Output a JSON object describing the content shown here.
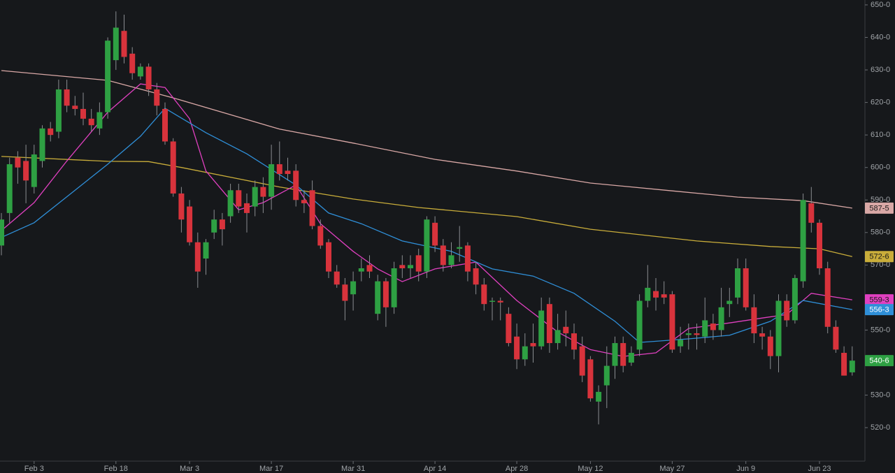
{
  "chart_data": {
    "type": "candlestick",
    "up_color": "#2ea043",
    "down_color": "#d8333c",
    "ylim": [
      509.7,
      651.5
    ],
    "yticks": [
      {
        "value": 520,
        "label": "520-0"
      },
      {
        "value": 530,
        "label": "530-0"
      },
      {
        "value": 540,
        "label": "540-0"
      },
      {
        "value": 550,
        "label": "550-0"
      },
      {
        "value": 560,
        "label": "560-0"
      },
      {
        "value": 570,
        "label": "570-0"
      },
      {
        "value": 580,
        "label": "580-0"
      },
      {
        "value": 590,
        "label": "590-0"
      },
      {
        "value": 600,
        "label": "600-0"
      },
      {
        "value": 610,
        "label": "610-0"
      },
      {
        "value": 620,
        "label": "620-0"
      },
      {
        "value": 630,
        "label": "630-0"
      },
      {
        "value": 640,
        "label": "640-0"
      },
      {
        "value": 650,
        "label": "650-0"
      }
    ],
    "categories": [
      null,
      null,
      null,
      null,
      "Feb 3",
      null,
      null,
      null,
      null,
      null,
      null,
      null,
      null,
      null,
      "Feb 18",
      null,
      null,
      null,
      null,
      null,
      null,
      null,
      null,
      "Mar 3",
      null,
      null,
      null,
      null,
      null,
      null,
      null,
      null,
      null,
      "Mar 17",
      null,
      null,
      null,
      null,
      null,
      null,
      null,
      null,
      null,
      "Mar 31",
      null,
      null,
      null,
      null,
      null,
      null,
      null,
      null,
      null,
      "Apr 14",
      null,
      null,
      null,
      null,
      null,
      null,
      null,
      null,
      null,
      "Apr 28",
      null,
      null,
      null,
      null,
      null,
      null,
      null,
      null,
      "May 12",
      null,
      null,
      null,
      null,
      null,
      null,
      null,
      null,
      null,
      "May 27",
      null,
      null,
      null,
      null,
      null,
      null,
      null,
      null,
      "Jun 9",
      null,
      null,
      null,
      null,
      null,
      null,
      null,
      null,
      "Jun 23",
      null,
      null,
      null,
      null
    ],
    "open": [
      576,
      586,
      603,
      602,
      594,
      602,
      612,
      611,
      624,
      619,
      618,
      615,
      612,
      617,
      633,
      642,
      635,
      628,
      631,
      624,
      618,
      608,
      592,
      588,
      577,
      572,
      580,
      584,
      585,
      593,
      589,
      588,
      594,
      591,
      601,
      599,
      599,
      590,
      593,
      582,
      577,
      568,
      564,
      561,
      568,
      570,
      555,
      565,
      557,
      570,
      569,
      573,
      568,
      583,
      576,
      570,
      575,
      576,
      569,
      564,
      559,
      559,
      555,
      548,
      541,
      546,
      545,
      558,
      546,
      551,
      549,
      545,
      541,
      528,
      533,
      539,
      546,
      540,
      544,
      559,
      562,
      561,
      561,
      545,
      548.5,
      549,
      548,
      552,
      550,
      558,
      560,
      569,
      557,
      549,
      548,
      542,
      559,
      553,
      565,
      589,
      583,
      569,
      551,
      543,
      537
    ],
    "high": [
      586,
      603,
      605,
      607,
      607,
      613,
      614,
      627,
      627,
      622,
      623,
      618,
      620,
      640,
      648,
      647,
      637,
      632,
      632,
      626,
      620,
      609,
      594,
      590,
      580,
      578,
      587,
      586,
      595,
      595,
      592,
      596,
      597,
      607,
      608,
      603,
      601,
      593,
      596,
      584,
      578,
      570,
      566,
      568,
      572,
      573,
      567,
      566,
      571,
      573,
      573,
      575,
      585,
      585,
      578,
      577,
      582,
      577,
      571,
      566,
      560,
      560,
      557,
      552,
      549,
      552,
      560,
      560,
      555,
      556,
      552,
      548,
      542,
      533,
      545,
      548,
      548,
      545,
      561,
      570,
      566,
      565,
      562,
      551,
      552,
      552,
      560,
      555,
      563,
      563,
      572,
      572,
      561,
      551,
      550,
      561,
      561,
      567,
      592,
      594,
      584,
      571,
      553,
      545,
      545
    ],
    "low": [
      573,
      583,
      595,
      589,
      592,
      600,
      608,
      609,
      617,
      616,
      613,
      611,
      610,
      615,
      630,
      632,
      627,
      627,
      622,
      616,
      607,
      591,
      580,
      576,
      563,
      567,
      578,
      576,
      583,
      586,
      580,
      585,
      586,
      587,
      596,
      596,
      588,
      586,
      581,
      575,
      566,
      563,
      553,
      556,
      565,
      566,
      553,
      551,
      555,
      566,
      566,
      565,
      566,
      574,
      568,
      569,
      571,
      565,
      561,
      556,
      553,
      553,
      545,
      538,
      539,
      540,
      544,
      543,
      544,
      545,
      541,
      534,
      528,
      521,
      526,
      535,
      537,
      539,
      542,
      557,
      556,
      558,
      543,
      543,
      544,
      544,
      546,
      547,
      548,
      554,
      558,
      556,
      546,
      544,
      538,
      537,
      551,
      552,
      563,
      580,
      567,
      549,
      543,
      536,
      536
    ],
    "close": [
      584,
      601,
      600,
      596,
      604,
      612,
      610,
      624,
      619,
      618,
      615,
      613,
      617,
      639,
      643,
      634,
      629,
      631,
      624,
      619,
      608,
      592,
      584,
      577,
      568,
      577,
      584,
      581,
      593,
      588,
      586,
      594,
      591,
      601,
      598,
      598,
      590,
      589,
      582,
      576,
      568,
      564,
      559,
      565,
      569,
      568,
      565,
      557,
      569,
      569,
      570,
      568,
      584,
      576,
      570,
      573,
      575.5,
      568,
      564,
      558,
      559,
      558.5,
      546,
      541,
      545,
      545,
      556,
      546,
      550,
      549,
      544,
      536,
      529,
      531,
      539,
      546,
      539,
      543,
      559,
      563,
      560,
      560,
      544,
      547,
      549,
      548.5,
      553,
      550,
      557,
      559,
      569,
      557,
      549,
      548,
      542,
      559,
      553,
      566,
      590,
      583,
      569,
      551,
      544,
      536,
      540.6
    ],
    "last_label": {
      "value": 540.6,
      "label": "540-6"
    },
    "lines": [
      {
        "color": "#d9a8a6",
        "text_color": "#1a1a1a",
        "x": [
          0,
          13,
          21,
          34,
          43,
          53,
          63,
          72,
          82,
          90,
          98,
          104
        ],
        "values": [
          629.8,
          626.8,
          621.4,
          611.8,
          607.5,
          602.5,
          598.9,
          595.2,
          592.8,
          590.9,
          589.8,
          587.5
        ],
        "end_label": {
          "value": 587.5,
          "label": "587-5"
        }
      },
      {
        "color": "#c9ad3a",
        "text_color": "#1a1a1a",
        "x": [
          0,
          13,
          18,
          22,
          34,
          43,
          51,
          63,
          72,
          85,
          94,
          100,
          104
        ],
        "values": [
          603.4,
          601.9,
          601.8,
          600,
          594,
          590.3,
          587.7,
          584.9,
          581,
          577.4,
          575.7,
          575,
          572.6
        ],
        "end_label": {
          "value": 572.6,
          "label": "572-6"
        }
      },
      {
        "color": "#e040c0",
        "text_color": "#1a1a1a",
        "x": [
          0,
          4,
          8,
          13,
          17,
          20,
          23,
          25,
          29,
          32,
          36,
          39,
          43,
          46,
          49,
          53,
          58,
          63,
          68,
          72,
          76,
          80,
          84,
          89,
          93,
          96,
          99,
          104
        ],
        "values": [
          580.6,
          589.2,
          602,
          617,
          625.7,
          624.6,
          615,
          598.9,
          587,
          589.2,
          594.6,
          582.7,
          574.2,
          568.8,
          564.9,
          568.8,
          570.9,
          559.1,
          549.4,
          544,
          541.9,
          543,
          550.5,
          552.2,
          553.7,
          554.8,
          561.3,
          559.3
        ],
        "end_label": {
          "value": 559.3,
          "label": "559-3"
        }
      },
      {
        "color": "#2f8fd8",
        "text_color": "#ffffff",
        "x": [
          0,
          4,
          8,
          13,
          17,
          20,
          25,
          30,
          36,
          40,
          44,
          49,
          55,
          60,
          65,
          70,
          75,
          78,
          84,
          89,
          94,
          98,
          104
        ],
        "values": [
          578.5,
          583,
          591,
          601,
          609.6,
          618.2,
          610.7,
          604.2,
          594.6,
          586,
          582.7,
          577.4,
          574.2,
          568.8,
          566.6,
          561.3,
          552.7,
          546.2,
          547.3,
          548.4,
          552.7,
          559.1,
          556.3
        ],
        "end_label": {
          "value": 556.3,
          "label": "556-3"
        }
      }
    ]
  }
}
